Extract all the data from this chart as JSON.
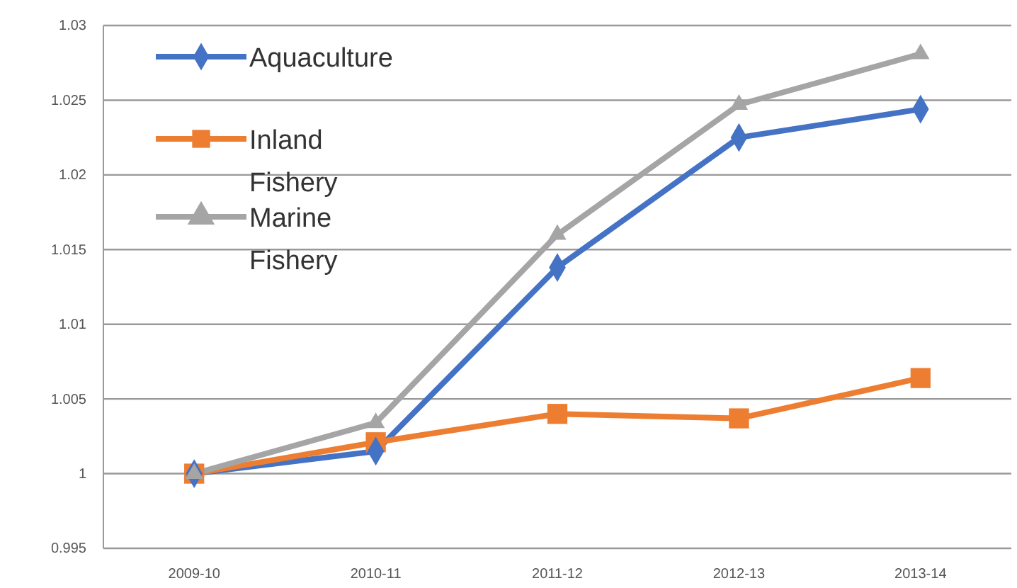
{
  "chart_data": {
    "type": "line",
    "categories": [
      "2009-10",
      "2010-11",
      "2011-12",
      "2012-13",
      "2013-14"
    ],
    "series": [
      {
        "name": "Aquaculture",
        "color": "#4472c4",
        "marker": "diamond",
        "values": [
          1,
          1.0015,
          1.0138,
          1.0225,
          1.0244
        ]
      },
      {
        "name": "Inland Fishery",
        "color": "#ed7d31",
        "marker": "square",
        "values": [
          1,
          1.0021,
          1.004,
          1.0037,
          1.0064
        ]
      },
      {
        "name": "Marine Fishery",
        "color": "#a5a5a5",
        "marker": "triangle",
        "values": [
          1,
          1.0034,
          1.016,
          1.0247,
          1.0281
        ]
      }
    ],
    "ylim": [
      0.995,
      1.03
    ],
    "yticks": [
      {
        "value": 0.995,
        "label": "0.995"
      },
      {
        "value": 1,
        "label": "1"
      },
      {
        "value": 1.005,
        "label": "1.005"
      },
      {
        "value": 1.01,
        "label": "1.01"
      },
      {
        "value": 1.015,
        "label": "1.015"
      },
      {
        "value": 1.02,
        "label": "1.02"
      },
      {
        "value": 1.025,
        "label": "1.025"
      },
      {
        "value": 1.03,
        "label": "1.03"
      }
    ],
    "grid": "y",
    "legend": "top left",
    "line_style": "solid"
  }
}
